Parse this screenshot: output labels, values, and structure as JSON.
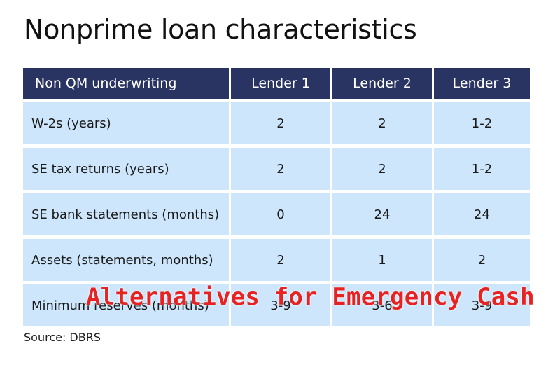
{
  "chart_data": {
    "type": "table",
    "title": "Nonprime loan characteristics",
    "columns": [
      "Non QM underwriting",
      "Lender 1",
      "Lender 2",
      "Lender 3"
    ],
    "rows": [
      [
        "W-2s (years)",
        "2",
        "2",
        "1-2"
      ],
      [
        "SE tax returns (years)",
        "2",
        "2",
        "1-2"
      ],
      [
        "SE bank statements (months)",
        "0",
        "24",
        "24"
      ],
      [
        "Assets (statements, months)",
        "2",
        "1",
        "2"
      ],
      [
        "Minimum reserves (months)",
        "3-9",
        "3-6",
        "3-9"
      ]
    ],
    "source": "Source: DBRS"
  },
  "overlay": {
    "watermark_text": "Alternatives for Emergency Cash",
    "watermark_color": "#e62222"
  },
  "colors": {
    "header_bg": "#293462",
    "row_bg": "#cde6fb"
  }
}
